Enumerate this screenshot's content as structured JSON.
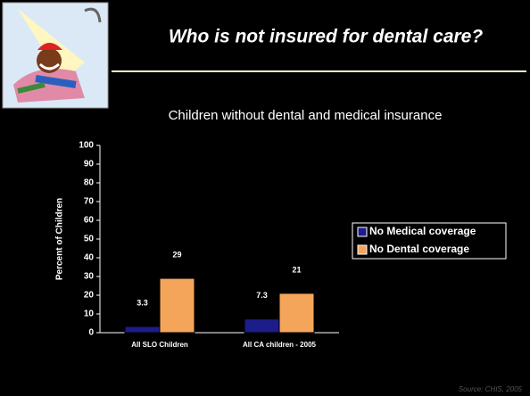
{
  "slide": {
    "title": "Who is not insured for dental care?",
    "source": "Source: CHIS, 2005"
  },
  "chart_data": {
    "type": "bar",
    "title": "Children without dental and medical insurance",
    "y_label": "Percent of Children",
    "categories": [
      "All SLO Children",
      "All CA children - 2005"
    ],
    "series": [
      {
        "name": "No Medical coverage",
        "color": "#1c1c8a",
        "values": [
          3.3,
          7.3
        ]
      },
      {
        "name": "No Dental coverage",
        "color": "#f5a55a",
        "values": [
          29,
          21
        ]
      }
    ],
    "ylim": [
      0,
      100
    ],
    "yticks": [
      0,
      10,
      20,
      30,
      40,
      50,
      60,
      70,
      80,
      90,
      100
    ],
    "legend": "right"
  }
}
